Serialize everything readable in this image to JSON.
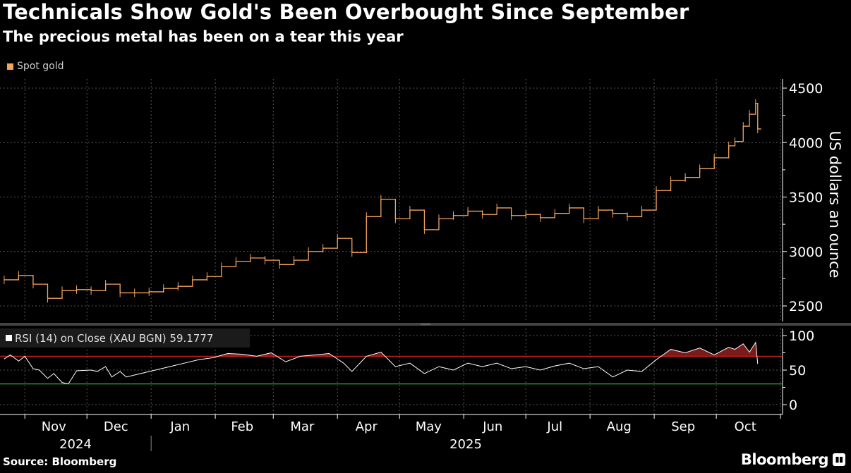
{
  "title": "Technicals Show Gold's Been Overbought Since September",
  "subtitle": "The precious metal has been on a tear this year",
  "source": "Source: Bloomberg",
  "brand": "Bloomberg",
  "colors": {
    "gold": "#f5a45a",
    "rsi": "#ffffff",
    "overbought": "#d01f1f",
    "oversold": "#2fae3a",
    "fill": "#7a1a1a"
  },
  "chart_data": [
    {
      "type": "line",
      "title": "Spot gold",
      "legend": [
        "Spot gold"
      ],
      "ylabel": "US dollars an ounce",
      "ylim": [
        2300,
        4600
      ],
      "yticks": [
        2500,
        3000,
        3500,
        4000,
        4500
      ],
      "x": [
        "2024-10-22",
        "2024-10-29",
        "2024-11-05",
        "2024-11-12",
        "2024-11-19",
        "2024-11-26",
        "2024-12-03",
        "2024-12-10",
        "2024-12-17",
        "2024-12-24",
        "2024-12-31",
        "2025-01-07",
        "2025-01-14",
        "2025-01-21",
        "2025-01-28",
        "2025-02-04",
        "2025-02-11",
        "2025-02-18",
        "2025-02-25",
        "2025-03-04",
        "2025-03-11",
        "2025-03-18",
        "2025-03-25",
        "2025-04-01",
        "2025-04-08",
        "2025-04-15",
        "2025-04-22",
        "2025-04-29",
        "2025-05-06",
        "2025-05-13",
        "2025-05-20",
        "2025-05-27",
        "2025-06-03",
        "2025-06-10",
        "2025-06-17",
        "2025-06-24",
        "2025-07-01",
        "2025-07-08",
        "2025-07-15",
        "2025-07-22",
        "2025-07-29",
        "2025-08-05",
        "2025-08-12",
        "2025-08-19",
        "2025-08-26",
        "2025-09-02",
        "2025-09-09",
        "2025-09-16",
        "2025-09-23",
        "2025-09-30",
        "2025-10-07",
        "2025-10-10",
        "2025-10-14",
        "2025-10-17",
        "2025-10-20",
        "2025-10-21"
      ],
      "values": [
        2740,
        2780,
        2700,
        2570,
        2640,
        2650,
        2640,
        2700,
        2620,
        2620,
        2630,
        2660,
        2680,
        2740,
        2770,
        2860,
        2910,
        2940,
        2920,
        2880,
        2920,
        3000,
        3030,
        3120,
        2990,
        3320,
        3480,
        3300,
        3380,
        3200,
        3300,
        3330,
        3370,
        3340,
        3400,
        3330,
        3340,
        3310,
        3350,
        3400,
        3300,
        3380,
        3350,
        3320,
        3380,
        3560,
        3650,
        3680,
        3760,
        3860,
        3970,
        4010,
        4150,
        4260,
        4360,
        4125
      ]
    },
    {
      "type": "line",
      "title": "RSI (14)  on Close (XAU BGN) 59.1777",
      "legend": [
        "RSI (14)  on Close (XAU BGN) 59.1777"
      ],
      "ylim": [
        -5,
        110
      ],
      "yticks": [
        0,
        50,
        100
      ],
      "thresholds": {
        "overbought": 70,
        "oversold": 30
      },
      "x": [
        "2024-10-22",
        "2024-10-25",
        "2024-10-29",
        "2024-11-01",
        "2024-11-05",
        "2024-11-08",
        "2024-11-12",
        "2024-11-15",
        "2024-11-19",
        "2024-11-22",
        "2024-11-26",
        "2024-12-03",
        "2024-12-06",
        "2024-12-10",
        "2024-12-13",
        "2024-12-17",
        "2024-12-20",
        "2024-12-27",
        "2025-01-03",
        "2025-01-10",
        "2025-01-17",
        "2025-01-24",
        "2025-01-31",
        "2025-02-07",
        "2025-02-14",
        "2025-02-21",
        "2025-02-28",
        "2025-03-07",
        "2025-03-14",
        "2025-03-21",
        "2025-03-28",
        "2025-04-04",
        "2025-04-08",
        "2025-04-15",
        "2025-04-22",
        "2025-04-29",
        "2025-05-06",
        "2025-05-13",
        "2025-05-20",
        "2025-05-27",
        "2025-06-03",
        "2025-06-10",
        "2025-06-17",
        "2025-06-24",
        "2025-07-01",
        "2025-07-08",
        "2025-07-15",
        "2025-07-22",
        "2025-07-29",
        "2025-08-05",
        "2025-08-12",
        "2025-08-19",
        "2025-08-26",
        "2025-09-02",
        "2025-09-09",
        "2025-09-16",
        "2025-09-23",
        "2025-09-30",
        "2025-10-07",
        "2025-10-10",
        "2025-10-14",
        "2025-10-17",
        "2025-10-20",
        "2025-10-21"
      ],
      "values": [
        66,
        72,
        63,
        70,
        52,
        50,
        38,
        45,
        32,
        30,
        49,
        50,
        48,
        55,
        40,
        48,
        40,
        45,
        50,
        55,
        60,
        65,
        68,
        74,
        73,
        70,
        75,
        62,
        70,
        72,
        74,
        60,
        48,
        70,
        76,
        55,
        60,
        45,
        55,
        50,
        60,
        55,
        60,
        52,
        55,
        50,
        56,
        60,
        52,
        55,
        40,
        50,
        48,
        65,
        80,
        75,
        82,
        72,
        83,
        80,
        88,
        76,
        90,
        59
      ]
    }
  ],
  "xaxis": {
    "months": [
      "Nov",
      "Dec",
      "Jan",
      "Feb",
      "Mar",
      "Apr",
      "May",
      "Jun",
      "Jul",
      "Aug",
      "Sep",
      "Oct"
    ],
    "years": [
      "2024",
      "2025"
    ]
  }
}
